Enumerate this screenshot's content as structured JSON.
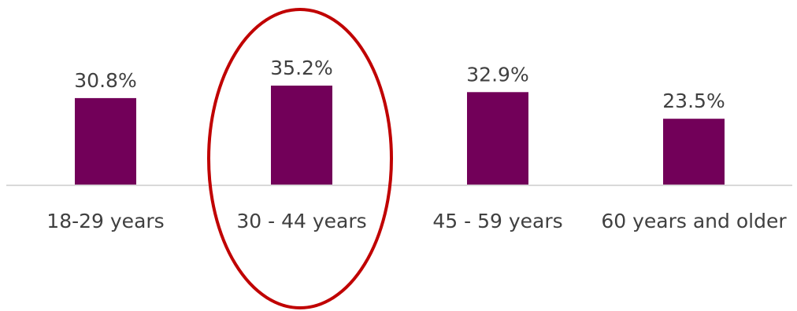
{
  "chart_data": {
    "type": "bar",
    "categories": [
      "18-29 years",
      "30 - 44 years",
      "45 - 59 years",
      "60 years and older"
    ],
    "values": [
      30.8,
      35.2,
      32.9,
      23.5
    ],
    "value_labels": [
      "30.8%",
      "35.2%",
      "32.9%",
      "23.5%"
    ],
    "ylim": [
      0,
      35.2
    ],
    "grid": false,
    "legend": "none",
    "highlighted_category": "30 - 44 years"
  },
  "colors": {
    "bar": "#720059",
    "highlight_ring": "#C00000",
    "baseline": "#D9D9D9",
    "text": "#404040"
  }
}
